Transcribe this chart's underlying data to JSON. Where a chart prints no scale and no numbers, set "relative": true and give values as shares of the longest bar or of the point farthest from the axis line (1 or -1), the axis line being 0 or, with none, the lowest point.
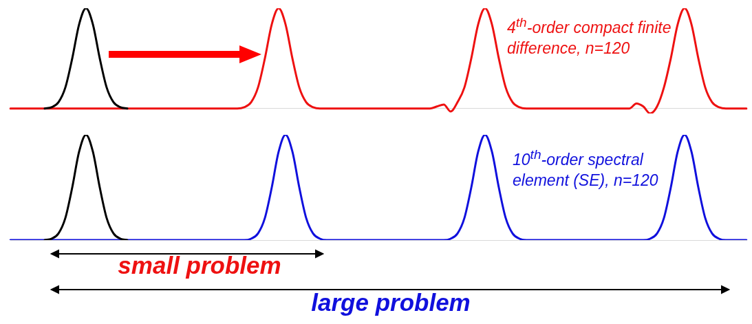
{
  "chart_data": [
    {
      "type": "line",
      "relative": true,
      "marker": "none",
      "categories": [
        null,
        null,
        null,
        null,
        null,
        null,
        null,
        null,
        null,
        null,
        null,
        null,
        null,
        null,
        null,
        null,
        null,
        null,
        null,
        null,
        null,
        null,
        null,
        null,
        null,
        null,
        null,
        null,
        null,
        null,
        null,
        null,
        null,
        null,
        null,
        null,
        null,
        null,
        null,
        null,
        null,
        null,
        null,
        null,
        null,
        null,
        null,
        null,
        null,
        null,
        null,
        null,
        null,
        null,
        null,
        null,
        null,
        null,
        null,
        null,
        null,
        null,
        null,
        null,
        null,
        null,
        null,
        null,
        null,
        null,
        null,
        null,
        null,
        null,
        null,
        null,
        null,
        null,
        null,
        null,
        null,
        null,
        null,
        null,
        null,
        null,
        null,
        null,
        null,
        null,
        null,
        null,
        null,
        null,
        null,
        null,
        null,
        null,
        null,
        null,
        null,
        null,
        null,
        null,
        null,
        null,
        null,
        null
      ],
      "series": [
        {
          "color": "#ee1111",
          "values": [
            0,
            0,
            0,
            0,
            0,
            0,
            0,
            0,
            0,
            0,
            0,
            0,
            0,
            0,
            0,
            0,
            0,
            0,
            0,
            0,
            0,
            0,
            0,
            0,
            0,
            0,
            0,
            0,
            0,
            0,
            0,
            0,
            0,
            0,
            0.013,
            0.063,
            0.21,
            0.5,
            0.84,
            1,
            0.84,
            0.5,
            0.21,
            0.063,
            0.013,
            0,
            0,
            0,
            0,
            0,
            0,
            0,
            0,
            0,
            0,
            0,
            0,
            0,
            0,
            0,
            0,
            0,
            0.02,
            0.04,
            -0.03,
            0.063,
            0.21,
            0.5,
            0.84,
            1,
            0.84,
            0.5,
            0.21,
            0.063,
            0.013,
            0,
            0,
            0,
            0,
            0,
            0,
            0,
            0,
            0,
            0,
            0,
            0,
            0,
            0,
            0,
            0,
            0.05,
            0.02,
            -0.05,
            0.02,
            0.21,
            0.5,
            0.84,
            1,
            0.84,
            0.5,
            0.21,
            0.063,
            0.013,
            0,
            0,
            0,
            0
          ]
        },
        {
          "color": "#000000",
          "values": [
            null,
            null,
            null,
            null,
            null,
            0,
            0.013,
            0.063,
            0.21,
            0.5,
            0.84,
            1,
            0.84,
            0.5,
            0.21,
            0.063,
            0.013,
            0,
            null,
            null,
            null,
            null,
            null,
            null,
            null,
            null,
            null,
            null,
            null,
            null,
            null,
            null,
            null,
            null,
            null,
            null,
            null,
            null,
            null,
            null,
            null,
            null,
            null,
            null,
            null,
            null,
            null,
            null,
            null,
            null,
            null,
            null,
            null,
            null,
            null,
            null,
            null,
            null,
            null,
            null,
            null,
            null,
            null,
            null,
            null,
            null,
            null,
            null,
            null,
            null,
            null,
            null,
            null,
            null,
            null,
            null,
            null,
            null,
            null,
            null,
            null,
            null,
            null,
            null,
            null,
            null,
            null,
            null,
            null,
            null,
            null,
            null,
            null,
            null,
            null,
            null,
            null,
            null,
            null,
            null,
            null,
            null,
            null,
            null,
            null,
            null,
            null,
            null
          ]
        }
      ],
      "annotations": [
        "4$^{th}$-order compact finite difference, n=120",
        "small problem"
      ]
    },
    {
      "type": "line",
      "relative": true,
      "marker": "none",
      "categories": [
        null,
        null,
        null,
        null,
        null,
        null,
        null,
        null,
        null,
        null,
        null,
        null,
        null,
        null,
        null,
        null,
        null,
        null,
        null,
        null,
        null,
        null,
        null,
        null,
        null,
        null,
        null,
        null,
        null,
        null,
        null,
        null,
        null,
        null,
        null,
        null,
        null,
        null,
        null,
        null,
        null,
        null,
        null,
        null,
        null,
        null,
        null,
        null,
        null,
        null,
        null,
        null,
        null,
        null,
        null,
        null,
        null,
        null,
        null,
        null,
        null,
        null,
        null,
        null,
        null,
        null,
        null,
        null,
        null,
        null,
        null,
        null,
        null,
        null,
        null,
        null,
        null,
        null,
        null,
        null,
        null,
        null,
        null,
        null,
        null,
        null,
        null,
        null,
        null,
        null,
        null,
        null,
        null,
        null,
        null,
        null,
        null,
        null,
        null,
        null,
        null,
        null,
        null,
        null,
        null,
        null,
        null,
        null
      ],
      "series": [
        {
          "color": "#1010dd",
          "values": [
            0,
            0,
            0,
            0,
            0,
            0,
            0,
            0,
            0,
            0,
            0,
            0,
            0,
            0,
            0,
            0,
            0,
            0,
            0,
            0,
            0,
            0,
            0,
            0,
            0,
            0,
            0,
            0,
            0,
            0,
            0,
            0,
            0,
            0,
            0,
            0.013,
            0.063,
            0.21,
            0.5,
            0.84,
            1,
            0.84,
            0.5,
            0.21,
            0.063,
            0.013,
            0,
            0,
            0,
            0,
            0,
            0,
            0,
            0,
            0,
            0,
            0,
            0,
            0,
            0,
            0,
            0,
            0,
            0,
            0.013,
            0.063,
            0.21,
            0.5,
            0.84,
            1,
            0.84,
            0.5,
            0.21,
            0.063,
            0.013,
            0,
            0,
            0,
            0,
            0,
            0,
            0,
            0,
            0,
            0,
            0,
            0,
            0,
            0,
            0,
            0,
            0,
            0,
            0.013,
            0.063,
            0.21,
            0.5,
            0.84,
            1,
            0.84,
            0.5,
            0.21,
            0.063,
            0.013,
            0,
            0,
            0,
            0
          ]
        },
        {
          "color": "#000000",
          "values": [
            null,
            null,
            null,
            null,
            null,
            0,
            0.013,
            0.063,
            0.21,
            0.5,
            0.84,
            1,
            0.84,
            0.5,
            0.21,
            0.063,
            0.013,
            0,
            null,
            null,
            null,
            null,
            null,
            null,
            null,
            null,
            null,
            null,
            null,
            null,
            null,
            null,
            null,
            null,
            null,
            null,
            null,
            null,
            null,
            null,
            null,
            null,
            null,
            null,
            null,
            null,
            null,
            null,
            null,
            null,
            null,
            null,
            null,
            null,
            null,
            null,
            null,
            null,
            null,
            null,
            null,
            null,
            null,
            null,
            null,
            null,
            null,
            null,
            null,
            null,
            null,
            null,
            null,
            null,
            null,
            null,
            null,
            null,
            null,
            null,
            null,
            null,
            null,
            null,
            null,
            null,
            null,
            null,
            null,
            null,
            null,
            null,
            null,
            null,
            null,
            null,
            null,
            null,
            null,
            null,
            null,
            null,
            null,
            null,
            null,
            null,
            null,
            null
          ]
        }
      ],
      "annotations": [
        "10$^{th}$-order spectral element (SE), n=120",
        "large problem"
      ]
    }
  ]
}
